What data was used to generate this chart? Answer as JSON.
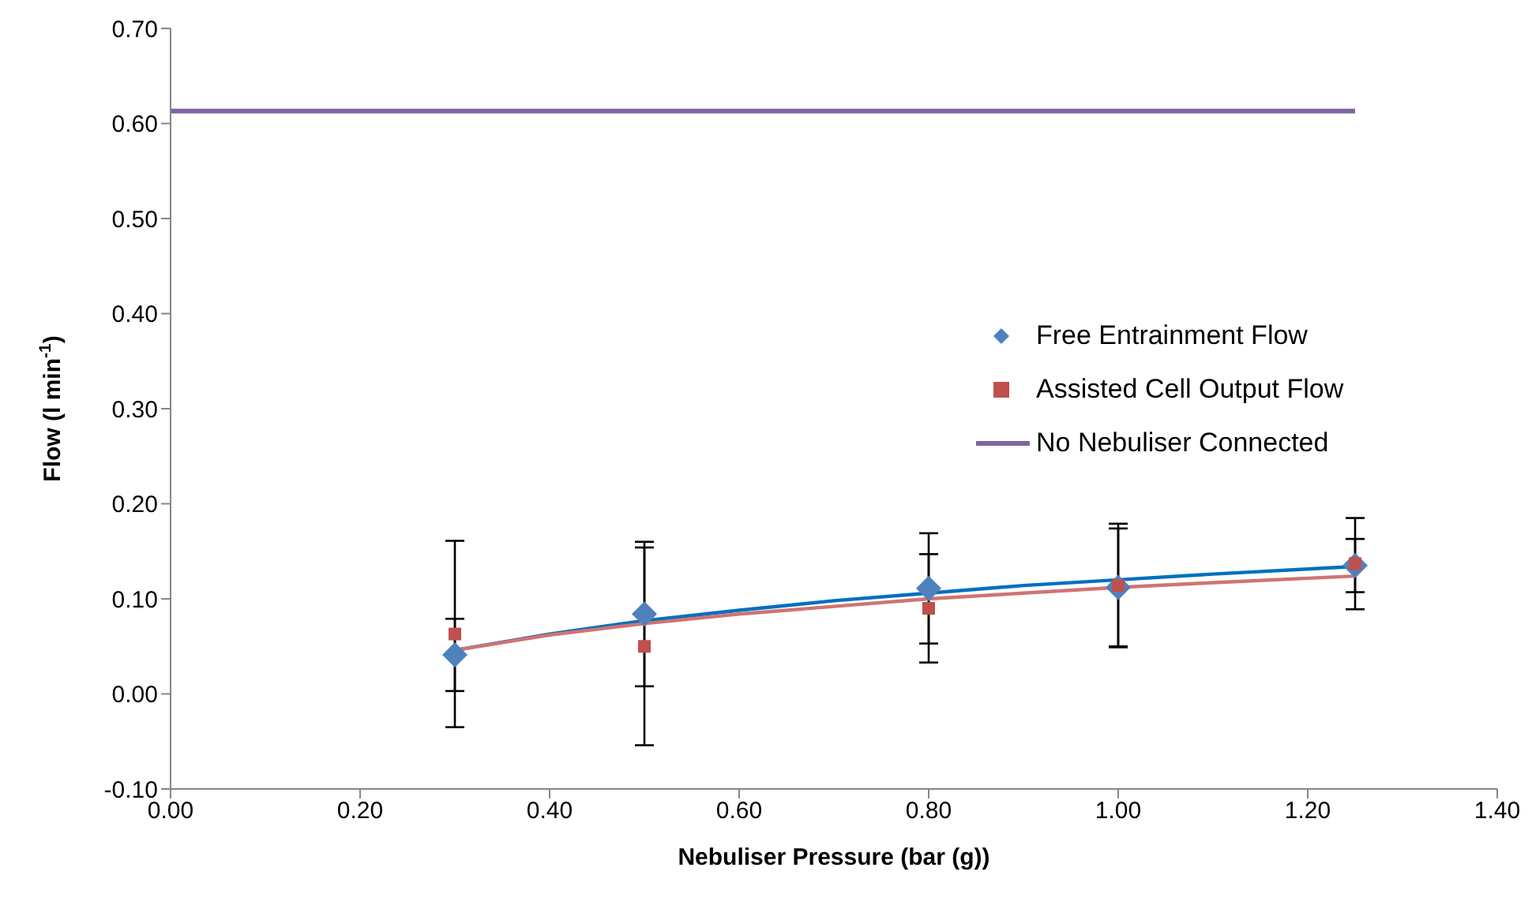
{
  "chart_data": {
    "type": "scatter",
    "xlabel": "Nebuliser Pressure (bar (g))",
    "ylabel": "Flow (l min$^{-1}$)",
    "x": [
      0.3,
      0.5,
      0.8,
      1.0,
      1.25
    ],
    "series": [
      {
        "name": "Free Entrainment Flow",
        "marker": "diamond",
        "color": "#4f81bd",
        "values": [
          0.041,
          0.084,
          0.111,
          0.112,
          0.135
        ],
        "errors": [
          0.038,
          0.076,
          0.058,
          0.062,
          0.028
        ]
      },
      {
        "name": "Assisted Cell Output Flow",
        "marker": "square",
        "color": "#c0504d",
        "values": [
          0.063,
          0.05,
          0.09,
          0.114,
          0.137
        ],
        "errors": [
          0.098,
          0.104,
          0.057,
          0.065,
          0.048
        ]
      },
      {
        "name": "No Nebuliser Connected",
        "type": "line",
        "marker": "none",
        "color": "#8064a2",
        "x": [
          0,
          1.25
        ],
        "values": [
          0.613,
          0.613
        ]
      },
      {
        "type": "line",
        "marker": "none",
        "color": "#0070c0",
        "x": [
          0.3,
          0.4,
          0.5,
          0.6,
          0.7,
          0.8,
          0.9,
          1.0,
          1.1,
          1.25
        ],
        "values": [
          0.046,
          0.063,
          0.077,
          0.088,
          0.098,
          0.106,
          0.114,
          0.12,
          0.126,
          0.134
        ]
      },
      {
        "type": "line",
        "marker": "none",
        "color": "#d07373",
        "x": [
          0.3,
          0.4,
          0.5,
          0.6,
          0.7,
          0.8,
          0.9,
          1.0,
          1.1,
          1.25
        ],
        "values": [
          0.046,
          0.062,
          0.074,
          0.084,
          0.092,
          0.1,
          0.106,
          0.112,
          0.117,
          0.124
        ]
      }
    ],
    "xlim": [
      0,
      1.4
    ],
    "xticks": [
      {
        "value": 0,
        "label": "0.00"
      },
      {
        "value": 0.2,
        "label": "0.20"
      },
      {
        "value": 0.4,
        "label": "0.40"
      },
      {
        "value": 0.6,
        "label": "0.60"
      },
      {
        "value": 0.8,
        "label": "0.80"
      },
      {
        "value": 1.0,
        "label": "1.00"
      },
      {
        "value": 1.2,
        "label": "1.20"
      },
      {
        "value": 1.4,
        "label": "1.40"
      }
    ],
    "ylim": [
      -0.1,
      0.7
    ],
    "yticks": [
      {
        "value": -0.1,
        "label": "-0.10"
      },
      {
        "value": 0,
        "label": "0.00"
      },
      {
        "value": 0.1,
        "label": "0.10"
      },
      {
        "value": 0.2,
        "label": "0.20"
      },
      {
        "value": 0.3,
        "label": "0.30"
      },
      {
        "value": 0.4,
        "label": "0.40"
      },
      {
        "value": 0.5,
        "label": "0.50"
      },
      {
        "value": 0.6,
        "label": "0.60"
      },
      {
        "value": 0.7,
        "label": "0.70"
      }
    ],
    "grid": false,
    "legend": "right"
  }
}
